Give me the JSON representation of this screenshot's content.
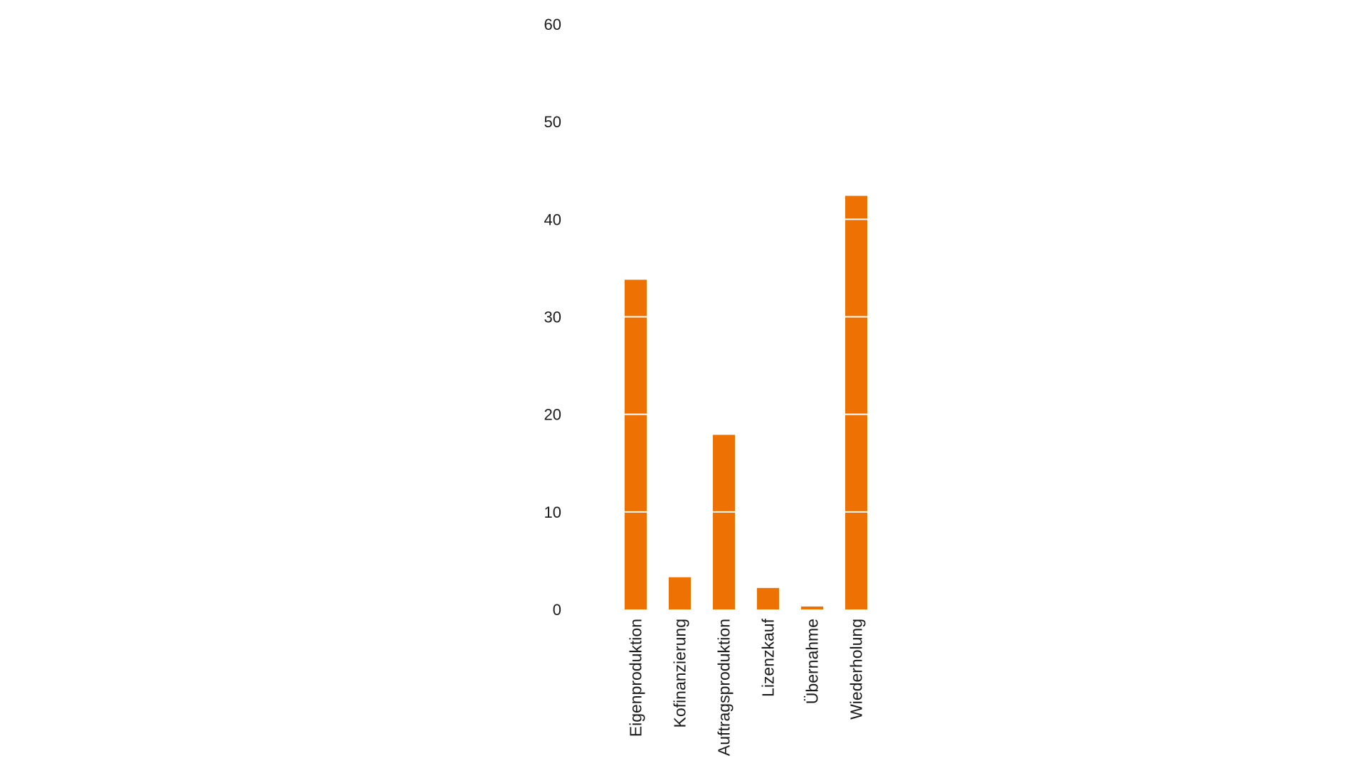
{
  "chart_data": {
    "type": "bar",
    "title": "",
    "xlabel": "",
    "ylabel": "",
    "categories": [
      "Eigenproduktion",
      "Kofinanzierung",
      "Auftragsproduktion",
      "Lizenzkauf",
      "Übernahme",
      "Wiederholung"
    ],
    "values": [
      33.8,
      3.3,
      17.9,
      2.2,
      0.3,
      42.4
    ],
    "ylim": [
      0,
      60
    ],
    "yticks": [
      "0",
      "10",
      "20",
      "30",
      "40",
      "50",
      "60"
    ],
    "grid": "white lines across bars at each tick",
    "legend": "none",
    "bar_color": "#ee7203",
    "gridline_color": "#ffffff"
  }
}
